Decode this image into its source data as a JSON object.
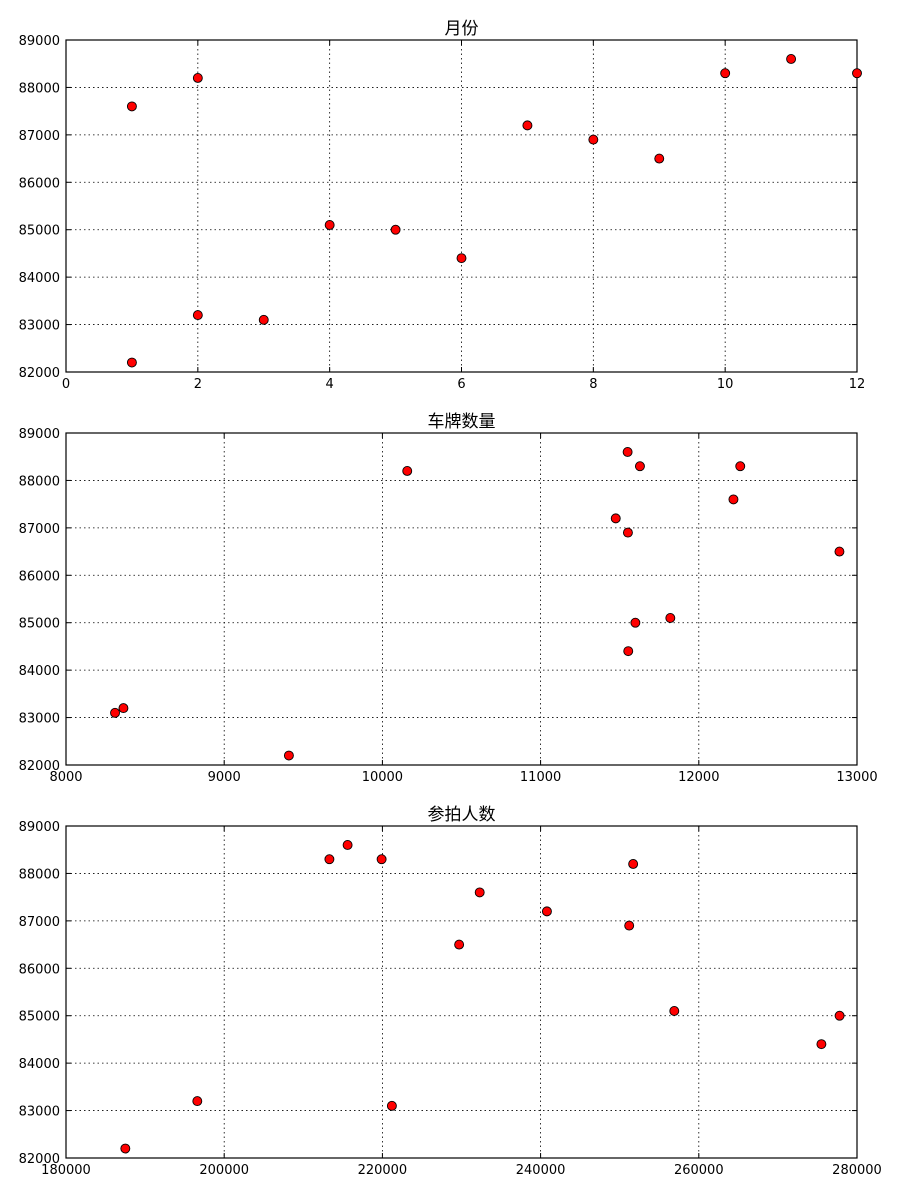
{
  "chart_data": [
    {
      "type": "scatter",
      "title": "月份",
      "xlabel": "",
      "ylabel": "",
      "xlim": [
        0,
        12
      ],
      "ylim": [
        82000,
        89000
      ],
      "xticks": [
        "0",
        "2",
        "4",
        "6",
        "8",
        "10",
        "12"
      ],
      "yticks": [
        "82000",
        "83000",
        "84000",
        "85000",
        "86000",
        "87000",
        "88000",
        "89000"
      ],
      "grid": true,
      "marker_color": "#ff0000",
      "points": [
        {
          "x": 1,
          "y": 87600
        },
        {
          "x": 1,
          "y": 82200
        },
        {
          "x": 2,
          "y": 88200
        },
        {
          "x": 2,
          "y": 83200
        },
        {
          "x": 3,
          "y": 83100
        },
        {
          "x": 4,
          "y": 85100
        },
        {
          "x": 5,
          "y": 85000
        },
        {
          "x": 6,
          "y": 84400
        },
        {
          "x": 7,
          "y": 87200
        },
        {
          "x": 8,
          "y": 86900
        },
        {
          "x": 9,
          "y": 86500
        },
        {
          "x": 10,
          "y": 88300
        },
        {
          "x": 11,
          "y": 88600
        },
        {
          "x": 12,
          "y": 88300
        }
      ]
    },
    {
      "type": "scatter",
      "title": "车牌数量",
      "xlabel": "",
      "ylabel": "",
      "xlim": [
        8000,
        13000
      ],
      "ylim": [
        82000,
        89000
      ],
      "xticks": [
        "8000",
        "9000",
        "10000",
        "11000",
        "12000",
        "13000"
      ],
      "yticks": [
        "82000",
        "83000",
        "84000",
        "85000",
        "86000",
        "87000",
        "88000",
        "89000"
      ],
      "grid": true,
      "marker_color": "#ff0000",
      "points": [
        {
          "x": 8310,
          "y": 83100
        },
        {
          "x": 8363,
          "y": 83200
        },
        {
          "x": 9409,
          "y": 82200
        },
        {
          "x": 10157,
          "y": 88200
        },
        {
          "x": 11475,
          "y": 87200
        },
        {
          "x": 11550,
          "y": 88600
        },
        {
          "x": 11552,
          "y": 86900
        },
        {
          "x": 11554,
          "y": 84400
        },
        {
          "x": 11599,
          "y": 85000
        },
        {
          "x": 11628,
          "y": 88300
        },
        {
          "x": 11820,
          "y": 85100
        },
        {
          "x": 12219,
          "y": 87600
        },
        {
          "x": 12262,
          "y": 88300
        },
        {
          "x": 12889,
          "y": 86500
        }
      ]
    },
    {
      "type": "scatter",
      "title": "参拍人数",
      "xlabel": "",
      "ylabel": "",
      "xlim": [
        180000,
        280000
      ],
      "ylim": [
        82000,
        89000
      ],
      "xticks": [
        "180000",
        "200000",
        "220000",
        "240000",
        "260000",
        "280000"
      ],
      "yticks": [
        "82000",
        "83000",
        "84000",
        "85000",
        "86000",
        "87000",
        "88000",
        "89000"
      ],
      "grid": true,
      "marker_color": "#ff0000",
      "points": [
        {
          "x": 187500,
          "y": 82200
        },
        {
          "x": 196600,
          "y": 83200
        },
        {
          "x": 213300,
          "y": 88300
        },
        {
          "x": 215600,
          "y": 88600
        },
        {
          "x": 219900,
          "y": 88300
        },
        {
          "x": 221200,
          "y": 83100
        },
        {
          "x": 229700,
          "y": 86500
        },
        {
          "x": 232300,
          "y": 87600
        },
        {
          "x": 240800,
          "y": 87200
        },
        {
          "x": 251200,
          "y": 86900
        },
        {
          "x": 251700,
          "y": 88200
        },
        {
          "x": 256900,
          "y": 85100
        },
        {
          "x": 275500,
          "y": 84400
        },
        {
          "x": 277800,
          "y": 85000
        }
      ]
    }
  ]
}
